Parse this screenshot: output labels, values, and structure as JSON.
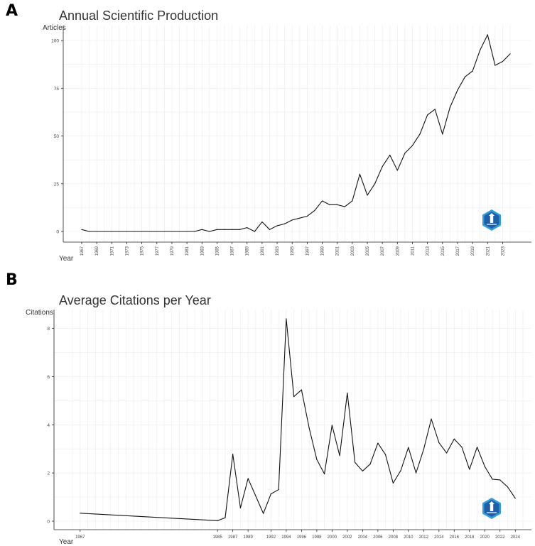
{
  "colors": {
    "line": "#111111",
    "grid": "#ebebeb",
    "axis": "#222222",
    "logo_dark": "#1e5fa8",
    "logo_light": "#2f9ee0"
  },
  "chart_data": [
    {
      "panel": "A",
      "type": "line",
      "title": "Annual Scientific Production",
      "ylabel": "Articles",
      "xlabel": "Year",
      "x": [
        1967,
        1968,
        1969,
        1970,
        1971,
        1972,
        1973,
        1974,
        1975,
        1976,
        1977,
        1978,
        1979,
        1980,
        1981,
        1982,
        1983,
        1984,
        1985,
        1986,
        1987,
        1988,
        1989,
        1990,
        1991,
        1992,
        1993,
        1994,
        1995,
        1996,
        1997,
        1998,
        1999,
        2000,
        2001,
        2002,
        2003,
        2004,
        2005,
        2006,
        2007,
        2008,
        2009,
        2010,
        2011,
        2012,
        2013,
        2014,
        2015,
        2016,
        2017,
        2018,
        2019,
        2020,
        2021,
        2022,
        2023,
        2024
      ],
      "values": [
        1,
        0,
        0,
        0,
        0,
        0,
        0,
        0,
        0,
        0,
        0,
        0,
        0,
        0,
        0,
        0,
        1,
        0,
        1,
        1,
        1,
        1,
        2,
        0,
        5,
        1,
        3,
        4,
        6,
        7,
        8,
        11,
        16,
        14,
        14,
        13,
        16,
        30,
        19,
        25,
        34,
        40,
        32,
        41,
        45,
        51,
        61,
        64,
        51,
        65,
        74,
        81,
        84,
        95,
        103,
        87,
        89,
        93
      ],
      "xlim": [
        1967,
        2024
      ],
      "ylim": [
        0,
        103
      ],
      "yticks": [
        0,
        25,
        50,
        75,
        100
      ],
      "ytick_labels": [
        "0",
        "25",
        "50",
        "75",
        "100"
      ],
      "xticks": [
        1967,
        1969,
        1971,
        1973,
        1975,
        1977,
        1979,
        1981,
        1983,
        1985,
        1987,
        1989,
        1991,
        1993,
        1995,
        1997,
        1999,
        2001,
        2003,
        2005,
        2007,
        2009,
        2011,
        2013,
        2015,
        2017,
        2019,
        2021,
        2023
      ],
      "xtick_labels": [
        "1967",
        "1969",
        "1971",
        "1973",
        "1975",
        "1977",
        "1979",
        "1981",
        "1983",
        "1985",
        "1987",
        "1989",
        "1991",
        "1993",
        "1995",
        "1997",
        "1999",
        "2001",
        "2003",
        "2005",
        "2007",
        "2009",
        "2011",
        "2013",
        "2015",
        "2017",
        "2019",
        "2021",
        "2023"
      ],
      "grid": true
    },
    {
      "panel": "B",
      "type": "line",
      "title": "Average Citations per Year",
      "ylabel": "Citations",
      "xlabel": "Year",
      "x": [
        1967,
        1985,
        1986,
        1987,
        1988,
        1989,
        1991,
        1992,
        1993,
        1994,
        1995,
        1996,
        1997,
        1998,
        1999,
        2000,
        2001,
        2002,
        2003,
        2004,
        2005,
        2006,
        2007,
        2008,
        2009,
        2010,
        2011,
        2012,
        2013,
        2014,
        2015,
        2016,
        2017,
        2018,
        2019,
        2020,
        2021,
        2022,
        2023,
        2024
      ],
      "values": [
        0.33,
        0.02,
        0.14,
        2.78,
        0.55,
        1.77,
        0.32,
        1.13,
        1.31,
        8.4,
        5.17,
        5.45,
        3.87,
        2.56,
        1.96,
        3.98,
        2.72,
        5.32,
        2.44,
        2.08,
        2.37,
        3.24,
        2.76,
        1.58,
        2.1,
        3.06,
        2.0,
        2.98,
        4.24,
        3.26,
        2.83,
        3.41,
        3.07,
        2.15,
        3.07,
        2.27,
        1.74,
        1.71,
        1.42,
        0.95
      ],
      "xlim": [
        1966,
        2025
      ],
      "ylim": [
        0,
        8.4
      ],
      "yticks": [
        0,
        2,
        4,
        6,
        8
      ],
      "ytick_labels": [
        "0",
        "2",
        "4",
        "6",
        "8"
      ],
      "xticks": [
        1967,
        1985,
        1987,
        1989,
        1992,
        1994,
        1996,
        1998,
        2000,
        2002,
        2004,
        2006,
        2008,
        2010,
        2012,
        2014,
        2016,
        2018,
        2020,
        2022,
        2024
      ],
      "xtick_labels": [
        "1967",
        "1985",
        "1987",
        "1989",
        "1992",
        "1994",
        "1996",
        "1998",
        "2000",
        "2002",
        "2004",
        "2006",
        "2008",
        "2010",
        "2012",
        "2014",
        "2016",
        "2018",
        "2020",
        "2022",
        "2024"
      ],
      "grid": true
    }
  ]
}
